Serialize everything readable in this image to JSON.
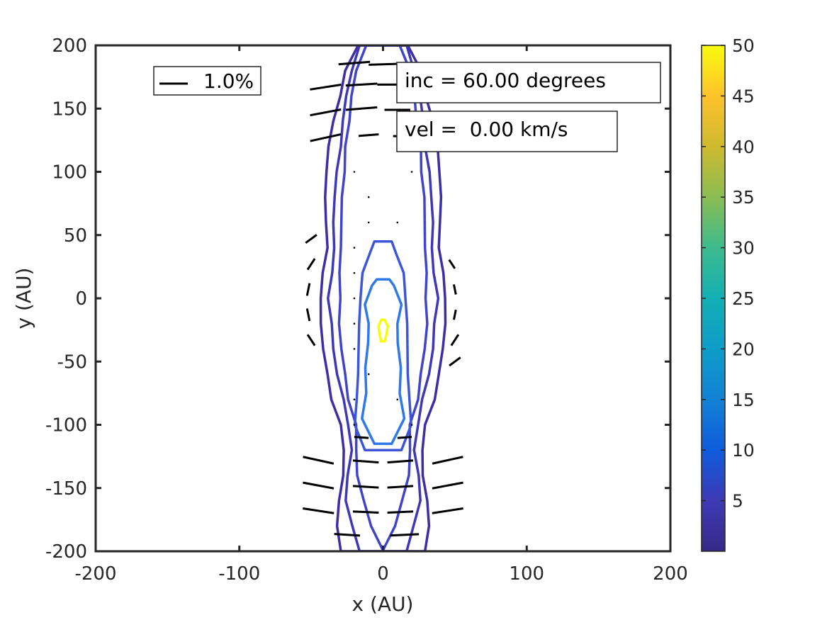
{
  "chart_data": {
    "type": "contour",
    "xlabel": "x (AU)",
    "ylabel": "y (AU)",
    "xlim": [
      -200,
      200
    ],
    "ylim": [
      -200,
      200
    ],
    "xticks": [
      -200,
      -100,
      0,
      100,
      200
    ],
    "yticks": [
      -200,
      -150,
      -100,
      -50,
      0,
      50,
      100,
      150,
      200
    ],
    "grid": false,
    "annotations": {
      "inclination": "inc = 60.00 degrees",
      "velocity": "vel =  0.00 km/s"
    },
    "legend": {
      "label": "1.0%",
      "placement": "top-left",
      "description": "polarization vector scale"
    },
    "colorbar": {
      "colormap": "parula",
      "min": 0,
      "max": 50,
      "ticks": [
        5,
        10,
        15,
        20,
        25,
        30,
        35,
        40,
        45,
        50
      ],
      "placement": "right"
    },
    "contours": [
      {
        "level": 1,
        "color": "#3e2ea3",
        "hw": [
          30,
          32,
          30,
          28,
          27,
          30,
          36,
          38,
          42,
          43,
          44,
          42,
          38,
          40,
          40,
          40,
          38,
          34,
          30,
          26,
          18
        ]
      },
      {
        "level": 2,
        "color": "#3e38b6",
        "hw": [
          16,
          22,
          26,
          24,
          22,
          24,
          28,
          32,
          34,
          36,
          38,
          36,
          34,
          34,
          34,
          32,
          30,
          28,
          25,
          22,
          16
        ]
      },
      {
        "level": 3,
        "color": "#4144c9",
        "hw": [
          0,
          8,
          14,
          18,
          18,
          19,
          24,
          27,
          29,
          30,
          30,
          30,
          30,
          29,
          28,
          27,
          26,
          24,
          22,
          18,
          12
        ]
      },
      {
        "level": 6,
        "color": "#3d56d9",
        "y": [
          -120,
          -100,
          -80,
          -60,
          -40,
          -20,
          0,
          20,
          35,
          45
        ],
        "hw": [
          12,
          20,
          18,
          18,
          17,
          16,
          16,
          14,
          10,
          6
        ]
      },
      {
        "level": 10,
        "color": "#2e78e8",
        "y": [
          -115,
          -95,
          -75,
          -55,
          -35,
          -20,
          -5,
          10,
          15
        ],
        "hw": [
          6,
          14,
          12,
          12,
          11,
          10,
          12,
          8,
          4
        ]
      },
      {
        "level": 50,
        "color": "#f9fb0e",
        "y": [
          -34,
          -28,
          -22,
          -17
        ],
        "hw": [
          2,
          2.5,
          2.5,
          1.5
        ]
      }
    ],
    "vectors": [
      {
        "x": -20,
        "y": 186,
        "length": 22,
        "angle_deg": 5
      },
      {
        "x": 0,
        "y": 185,
        "length": 20,
        "angle_deg": 2
      },
      {
        "x": -40,
        "y": 167,
        "length": 22,
        "angle_deg": 10
      },
      {
        "x": -15,
        "y": 169,
        "length": 22,
        "angle_deg": 4
      },
      {
        "x": 5,
        "y": 169,
        "length": 18,
        "angle_deg": 0
      },
      {
        "x": -40,
        "y": 147,
        "length": 22,
        "angle_deg": 12
      },
      {
        "x": -15,
        "y": 150,
        "length": 22,
        "angle_deg": 5
      },
      {
        "x": 10,
        "y": 149,
        "length": 18,
        "angle_deg": 0
      },
      {
        "x": -40,
        "y": 127,
        "length": 22,
        "angle_deg": 14
      },
      {
        "x": -10,
        "y": 129,
        "length": 14,
        "angle_deg": 5
      },
      {
        "x": 12,
        "y": 128,
        "length": 10,
        "angle_deg": -3
      },
      {
        "x": -50,
        "y": 47,
        "length": 10,
        "angle_deg": 40
      },
      {
        "x": -50,
        "y": 27,
        "length": 10,
        "angle_deg": 60
      },
      {
        "x": -52,
        "y": 7,
        "length": 10,
        "angle_deg": 80
      },
      {
        "x": -52,
        "y": -13,
        "length": 10,
        "angle_deg": -80
      },
      {
        "x": -50,
        "y": -33,
        "length": 10,
        "angle_deg": -60
      },
      {
        "x": 48,
        "y": 27,
        "length": 8,
        "angle_deg": -60
      },
      {
        "x": 50,
        "y": 7,
        "length": 8,
        "angle_deg": -80
      },
      {
        "x": 50,
        "y": -13,
        "length": 8,
        "angle_deg": 80
      },
      {
        "x": 50,
        "y": -33,
        "length": 10,
        "angle_deg": 60
      },
      {
        "x": 50,
        "y": -50,
        "length": 10,
        "angle_deg": 40
      },
      {
        "x": -15,
        "y": -110,
        "length": 10,
        "angle_deg": -5
      },
      {
        "x": 15,
        "y": -110,
        "length": 10,
        "angle_deg": 5
      },
      {
        "x": -45,
        "y": -128,
        "length": 22,
        "angle_deg": -14
      },
      {
        "x": -12,
        "y": -129,
        "length": 18,
        "angle_deg": -5
      },
      {
        "x": 12,
        "y": -129,
        "length": 18,
        "angle_deg": 5
      },
      {
        "x": 45,
        "y": -128,
        "length": 22,
        "angle_deg": 14
      },
      {
        "x": -45,
        "y": -148,
        "length": 22,
        "angle_deg": -12
      },
      {
        "x": -12,
        "y": -149,
        "length": 18,
        "angle_deg": -4
      },
      {
        "x": 12,
        "y": -149,
        "length": 18,
        "angle_deg": 4
      },
      {
        "x": 45,
        "y": -148,
        "length": 22,
        "angle_deg": 12
      },
      {
        "x": -45,
        "y": -168,
        "length": 22,
        "angle_deg": -10
      },
      {
        "x": -12,
        "y": -169,
        "length": 18,
        "angle_deg": -3
      },
      {
        "x": 12,
        "y": -169,
        "length": 18,
        "angle_deg": 3
      },
      {
        "x": 45,
        "y": -168,
        "length": 22,
        "angle_deg": 10
      },
      {
        "x": -25,
        "y": -187,
        "length": 18,
        "angle_deg": -4
      },
      {
        "x": 15,
        "y": -187,
        "length": 20,
        "angle_deg": 3
      }
    ],
    "dots": [
      [
        -20,
        100
      ],
      [
        20,
        100
      ],
      [
        -10,
        80
      ],
      [
        -10,
        60
      ],
      [
        10,
        60
      ],
      [
        -20,
        40
      ],
      [
        -20,
        20
      ],
      [
        -20,
        0
      ],
      [
        -20,
        -20
      ],
      [
        -20,
        -40
      ],
      [
        -10,
        -60
      ],
      [
        -20,
        -80
      ],
      [
        10,
        -80
      ],
      [
        -20,
        -100
      ],
      [
        20,
        -100
      ]
    ]
  }
}
